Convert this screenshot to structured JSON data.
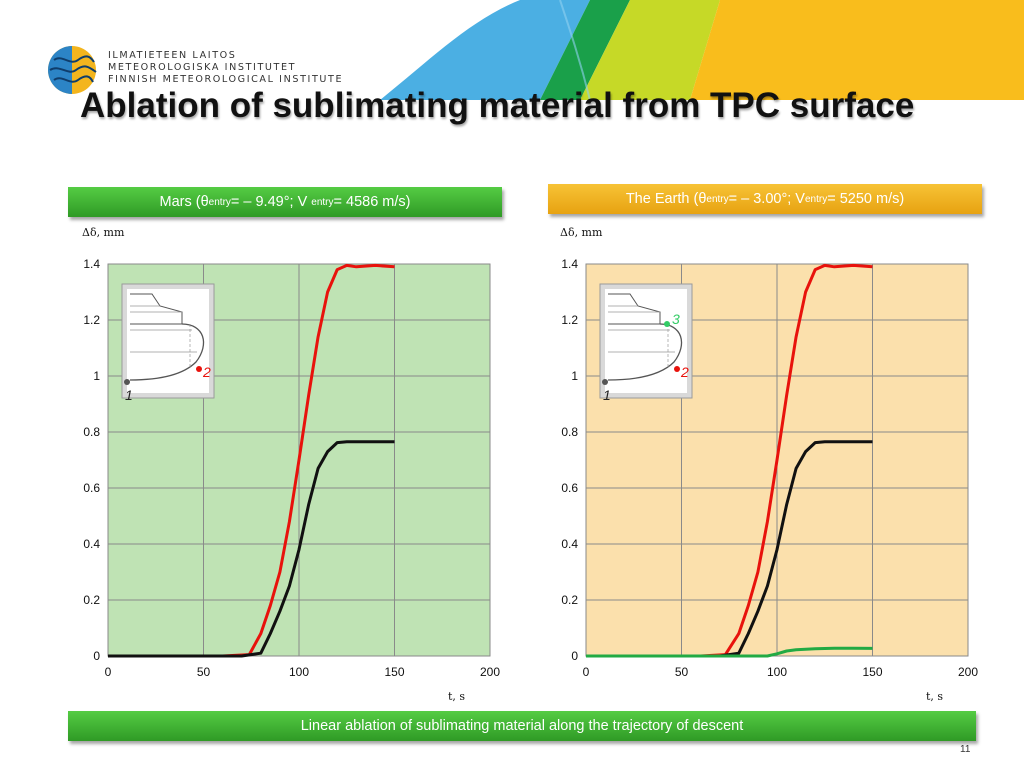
{
  "header": {
    "org_lines": [
      "ILMATIETEEN LAITOS",
      "METEOROLOGISKA INSTITUTET",
      "FINNISH METEOROLOGICAL INSTITUTE"
    ],
    "title": "Ablation of sublimating material from TPC surface",
    "brand_colors": [
      "#4bafe3",
      "#1aa04a",
      "#c6d927",
      "#f9bd1c"
    ]
  },
  "panels": {
    "mars": {
      "label_pre": "Mars (θ",
      "sub1": "entry",
      "label_mid": " = – 9.49°; V",
      "sub2": "entry",
      "label_post": " = 4586 m/s)",
      "color": "#3db033",
      "inset_point_labels": [
        "1",
        "2"
      ]
    },
    "earth": {
      "label_pre": "The Earth (θ ",
      "sub1": "entry",
      "label_mid": " = – 3.00°; V ",
      "sub2": "entry",
      "label_post": " = 5250 m/s)",
      "color": "#f0b323",
      "inset_point_labels": [
        "1",
        "2",
        "3"
      ]
    }
  },
  "footer": {
    "caption": "Linear ablation of sublimating material along the trajectory of descent",
    "page_number": "11"
  },
  "chart_data": [
    {
      "type": "line",
      "ylabel": "Δδ, mm",
      "xlabel": "t, s",
      "xlim": [
        0,
        200
      ],
      "ylim": [
        0,
        1.4
      ],
      "xticks": [
        0,
        50,
        100,
        150,
        200
      ],
      "yticks": [
        0,
        0.2,
        0.4,
        0.6,
        0.8,
        1,
        1.2,
        1.4
      ],
      "grid": true,
      "background": "#bfe3b4",
      "series": [
        {
          "point": "2",
          "color": "#e8120c",
          "x": [
            0,
            60,
            74,
            80,
            85,
            90,
            95,
            100,
            105,
            110,
            115,
            120,
            125,
            130,
            140,
            150
          ],
          "y": [
            0,
            0,
            0.005,
            0.08,
            0.18,
            0.3,
            0.48,
            0.7,
            0.93,
            1.14,
            1.3,
            1.38,
            1.395,
            1.39,
            1.395,
            1.39
          ]
        },
        {
          "point": "1",
          "color": "#111111",
          "x": [
            0,
            70,
            80,
            85,
            90,
            95,
            100,
            105,
            110,
            115,
            120,
            125,
            130,
            140,
            150
          ],
          "y": [
            0,
            0,
            0.01,
            0.08,
            0.16,
            0.25,
            0.38,
            0.54,
            0.67,
            0.73,
            0.762,
            0.765,
            0.765,
            0.765,
            0.765
          ]
        }
      ]
    },
    {
      "type": "line",
      "ylabel": "Δδ, mm",
      "xlabel": "t, s",
      "xlim": [
        0,
        200
      ],
      "ylim": [
        0,
        1.4
      ],
      "xticks": [
        0,
        50,
        100,
        150,
        200
      ],
      "yticks": [
        0,
        0.2,
        0.4,
        0.6,
        0.8,
        1,
        1.2,
        1.4
      ],
      "grid": true,
      "background": "#fbe0ac",
      "series": [
        {
          "point": "2",
          "color": "#e8120c",
          "x": [
            0,
            60,
            73,
            80,
            85,
            90,
            95,
            100,
            105,
            110,
            115,
            120,
            125,
            130,
            140,
            150
          ],
          "y": [
            0,
            0,
            0.005,
            0.08,
            0.18,
            0.3,
            0.48,
            0.7,
            0.93,
            1.14,
            1.3,
            1.38,
            1.395,
            1.39,
            1.395,
            1.39
          ]
        },
        {
          "point": "1",
          "color": "#111111",
          "x": [
            0,
            70,
            80,
            85,
            90,
            95,
            100,
            105,
            110,
            115,
            120,
            125,
            130,
            140,
            150
          ],
          "y": [
            0,
            0,
            0.01,
            0.08,
            0.16,
            0.25,
            0.38,
            0.54,
            0.67,
            0.73,
            0.762,
            0.765,
            0.765,
            0.765,
            0.765
          ]
        },
        {
          "point": "3",
          "color": "#22aa44",
          "x": [
            0,
            95,
            100,
            105,
            110,
            120,
            130,
            140,
            150
          ],
          "y": [
            0,
            0,
            0.008,
            0.018,
            0.022,
            0.026,
            0.028,
            0.028,
            0.027
          ]
        }
      ]
    }
  ]
}
